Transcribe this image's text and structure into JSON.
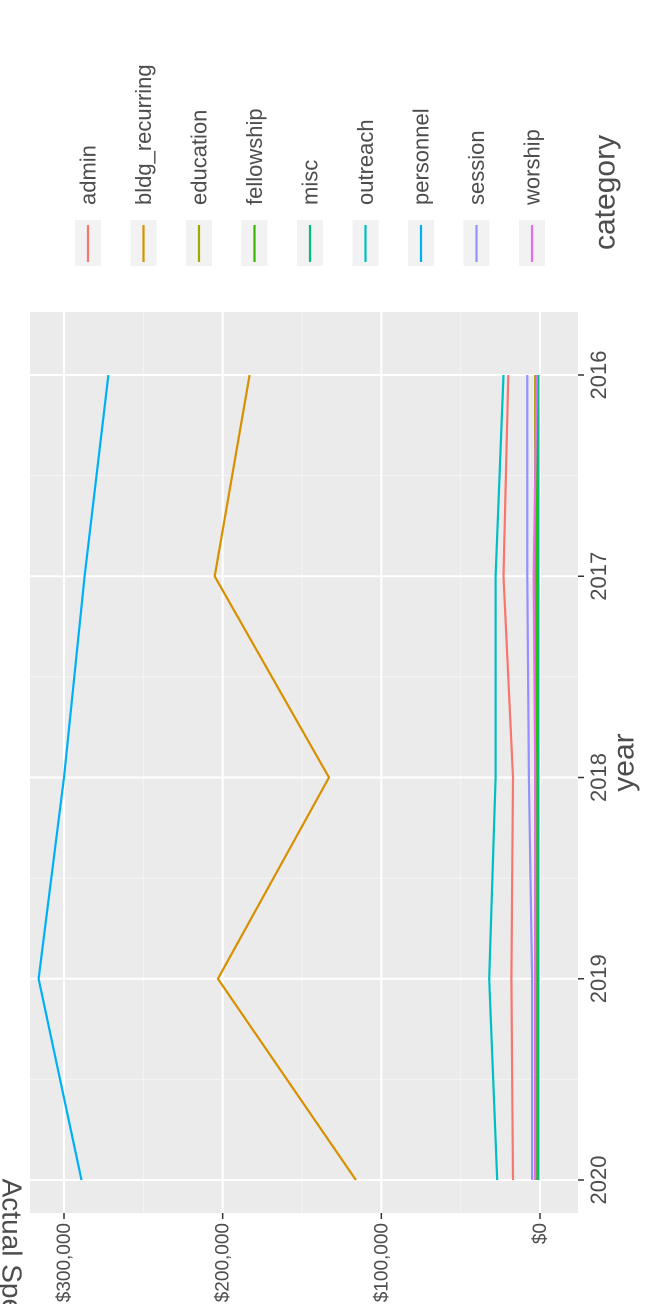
{
  "chart_data": {
    "type": "line",
    "title": "",
    "xlabel": "year",
    "ylabel": "Actual Spent",
    "x": [
      2016,
      2017,
      2018,
      2019,
      2020
    ],
    "xticks": [
      "2016",
      "2017",
      "2018",
      "2019",
      "2020"
    ],
    "yticks": [
      {
        "value": 0,
        "label": "$0"
      },
      {
        "value": 100000,
        "label": "$100,000"
      },
      {
        "value": 200000,
        "label": "$200,000"
      },
      {
        "value": 300000,
        "label": "$300,000"
      }
    ],
    "ylim": [
      -10000,
      330000
    ],
    "xlim": [
      2015.9,
      2020.1
    ],
    "grid": true,
    "orientation": "rotated 90 degrees clockwise",
    "legend_title": "category",
    "legend_position": "right",
    "series": [
      {
        "name": "admin",
        "color": "#F8766D",
        "values": [
          20000,
          23000,
          17000,
          18000,
          17000
        ]
      },
      {
        "name": "bldg_recurring",
        "color": "#D89000",
        "values": [
          183000,
          205000,
          133000,
          203000,
          116000
        ]
      },
      {
        "name": "education",
        "color": "#A3A500",
        "values": [
          3000,
          3000,
          3000,
          3000,
          3000
        ]
      },
      {
        "name": "fellowship",
        "color": "#39B600",
        "values": [
          2000,
          2000,
          2000,
          2000,
          2000
        ]
      },
      {
        "name": "misc",
        "color": "#00BF7D",
        "values": [
          1000,
          1000,
          1000,
          1000,
          1000
        ]
      },
      {
        "name": "outreach",
        "color": "#00BFC4",
        "values": [
          23000,
          28000,
          28000,
          32000,
          27000
        ]
      },
      {
        "name": "personnel",
        "color": "#00B0F6",
        "values": [
          272000,
          287000,
          300000,
          316000,
          289000
        ]
      },
      {
        "name": "session",
        "color": "#9590FF",
        "values": [
          8000,
          8000,
          7000,
          5000,
          5000
        ]
      },
      {
        "name": "worship",
        "color": "#E76BF3",
        "values": [
          2000,
          4000,
          3000,
          3000,
          3000
        ]
      }
    ]
  }
}
